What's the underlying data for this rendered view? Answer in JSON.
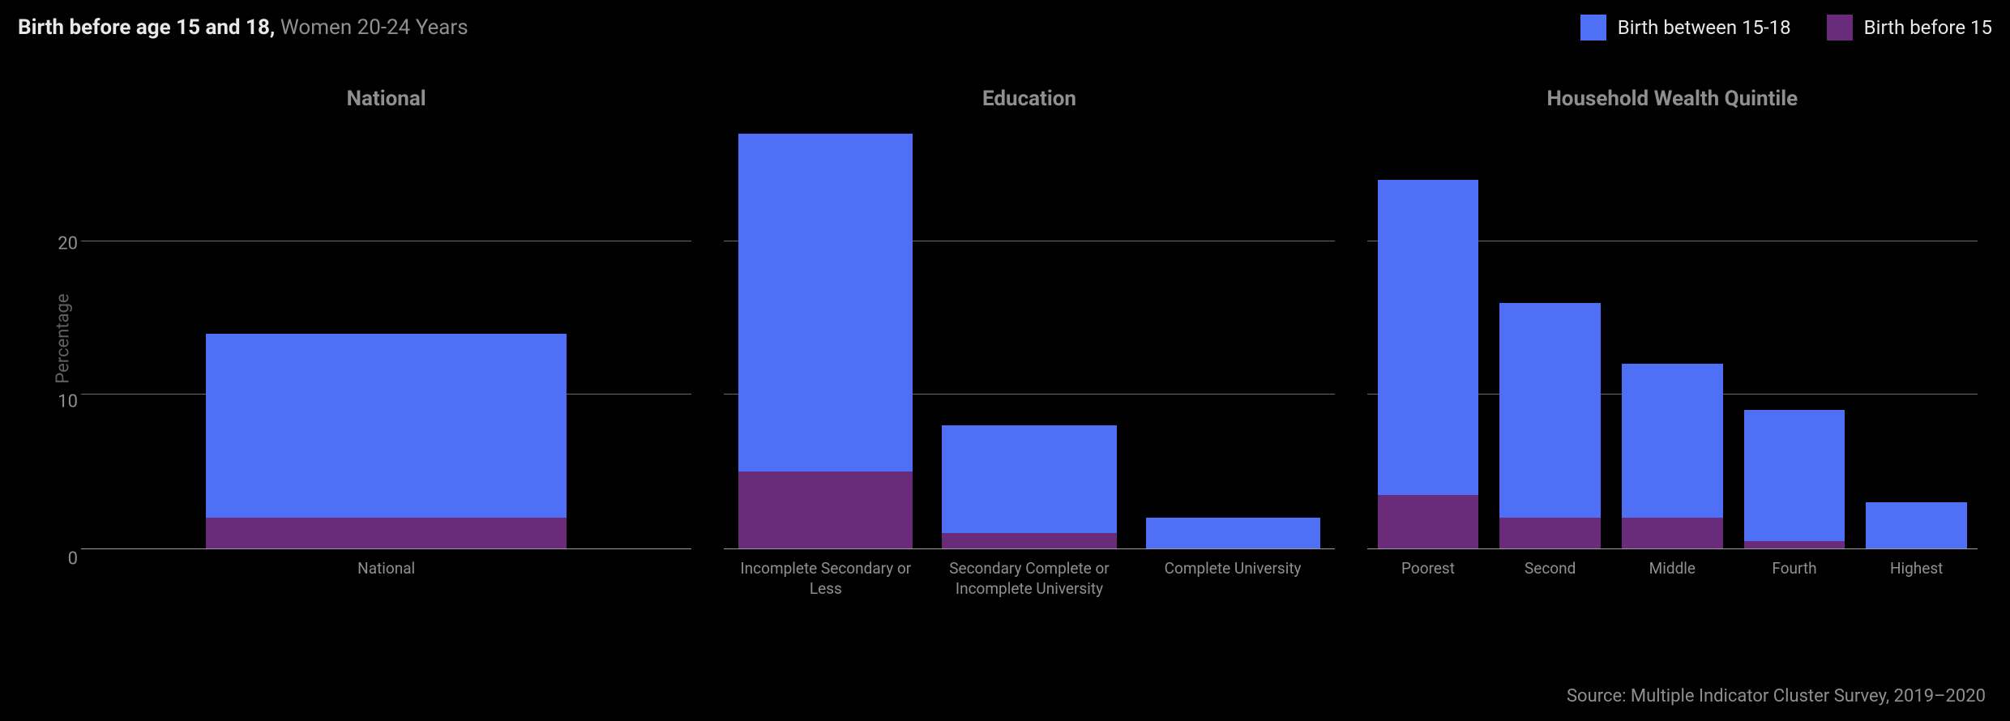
{
  "title_bold": "Birth before age 15 and 18,",
  "title_sub": "Women 20-24 Years",
  "legend": [
    {
      "label": "Birth between 15-18",
      "color": "#4f6ff7"
    },
    {
      "label": "Birth before 15",
      "color": "#6a2b7a"
    }
  ],
  "colors": {
    "upper": "#4f6ff7",
    "lower": "#6a2b7a",
    "background": "#000000",
    "grid": "#6a6a6a",
    "axis": "#9c9c9c",
    "panel_title": "#8f8f8f",
    "xlabel": "#8f8f8f",
    "ytick": "#8f8f8f",
    "ylabel": "#616161"
  },
  "yaxis": {
    "min": 0,
    "max": 28,
    "ticks": [
      0,
      10,
      20
    ],
    "label": "Percentage"
  },
  "panels": [
    {
      "id": "national",
      "title": "National",
      "width_weight": 1,
      "bar_width_pct": 60,
      "slots": [
        {
          "label": "National",
          "lower": 2.0,
          "upper": 12.0,
          "total": 14.0
        }
      ]
    },
    {
      "id": "education",
      "title": "Education",
      "width_weight": 1,
      "bar_width_pct": 90,
      "slots": [
        {
          "label": "Incomplete Secondary or Less",
          "lower": 5.0,
          "upper": 22.0,
          "total": 27.0
        },
        {
          "label": "Secondary Complete or Incomplete University",
          "lower": 1.0,
          "upper": 7.0,
          "total": 8.0
        },
        {
          "label": "Complete University",
          "lower": 0.0,
          "upper": 2.0,
          "total": 2.0
        }
      ]
    },
    {
      "id": "wealth",
      "title": "Household Wealth Quintile",
      "width_weight": 1,
      "bar_width_pct": 90,
      "slots": [
        {
          "label": "Poorest",
          "lower": 3.5,
          "upper": 20.5,
          "total": 24.0
        },
        {
          "label": "Second",
          "lower": 2.0,
          "upper": 14.0,
          "total": 16.0
        },
        {
          "label": "Middle",
          "lower": 2.0,
          "upper": 10.0,
          "total": 12.0
        },
        {
          "label": "Fourth",
          "lower": 0.5,
          "upper": 8.5,
          "total": 9.0
        },
        {
          "label": "Highest",
          "lower": 0.0,
          "upper": 3.0,
          "total": 3.0
        }
      ]
    }
  ],
  "source": "Source: Multiple Indicator Cluster Survey, 2019–2020"
}
